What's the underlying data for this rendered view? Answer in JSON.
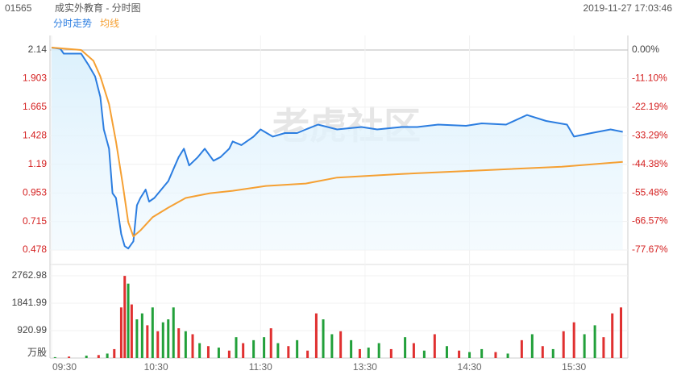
{
  "header": {
    "code": "01565",
    "title": "成实外教育 - 分时图",
    "datetime": "2019-11-27 17:03:46"
  },
  "watermark": "老虎社区",
  "chart_data": [
    {
      "type": "line",
      "xlim": [
        0,
        330
      ],
      "xticks": [
        {
          "value": 0,
          "label": "09:30"
        },
        {
          "value": 60,
          "label": "10:30"
        },
        {
          "value": 120,
          "label": "11:30"
        },
        {
          "value": 180,
          "label": "13:30"
        },
        {
          "value": 240,
          "label": "14:30"
        },
        {
          "value": 300,
          "label": "15:30"
        }
      ],
      "ylim": [
        0.478,
        2.14
      ],
      "yticks": [
        2.14,
        1.903,
        1.665,
        1.428,
        1.19,
        0.953,
        0.715,
        0.478
      ],
      "y2lim": [
        -77.67,
        0
      ],
      "y2ticks": [
        {
          "value": 0,
          "label": "0.00%"
        },
        {
          "value": -11.1,
          "label": "-11.10%"
        },
        {
          "value": -22.19,
          "label": "-22.19%"
        },
        {
          "value": -33.29,
          "label": "-33.29%"
        },
        {
          "value": -44.38,
          "label": "-44.38%"
        },
        {
          "value": -55.48,
          "label": "-55.48%"
        },
        {
          "value": -66.57,
          "label": "-66.57%"
        },
        {
          "value": -77.67,
          "label": "-77.67%"
        }
      ],
      "series": [
        {
          "name": "分时走势",
          "color": "#2b7de0",
          "x": [
            0,
            5,
            7,
            17,
            21,
            25,
            28,
            30,
            33,
            35,
            37,
            40,
            42,
            44,
            47,
            49,
            51,
            54,
            56,
            59,
            63,
            67,
            70,
            73,
            76,
            79,
            84,
            88,
            93,
            97,
            102,
            104,
            109,
            116,
            120,
            127,
            134,
            141,
            146,
            153,
            164,
            178,
            187,
            201,
            210,
            222,
            238,
            247,
            261,
            273,
            284,
            296,
            300,
            310,
            321,
            328
          ],
          "values": [
            2.16,
            2.15,
            2.11,
            2.11,
            2.02,
            1.92,
            1.75,
            1.48,
            1.32,
            0.95,
            0.91,
            0.61,
            0.51,
            0.49,
            0.55,
            0.85,
            0.91,
            0.98,
            0.88,
            0.91,
            0.98,
            1.05,
            1.15,
            1.25,
            1.32,
            1.18,
            1.25,
            1.32,
            1.22,
            1.25,
            1.32,
            1.38,
            1.35,
            1.42,
            1.48,
            1.42,
            1.45,
            1.45,
            1.48,
            1.52,
            1.48,
            1.5,
            1.48,
            1.5,
            1.5,
            1.52,
            1.51,
            1.53,
            1.52,
            1.6,
            1.55,
            1.52,
            1.42,
            1.45,
            1.48,
            1.46
          ]
        },
        {
          "name": "均线",
          "color": "#f5a033",
          "x": [
            0,
            17,
            24,
            28,
            33,
            37,
            41,
            44,
            47,
            51,
            58,
            67,
            77,
            91,
            104,
            123,
            146,
            164,
            201,
            247,
            293,
            328
          ],
          "values": [
            2.16,
            2.14,
            2.05,
            1.92,
            1.69,
            1.38,
            1.01,
            0.71,
            0.59,
            0.64,
            0.75,
            0.83,
            0.91,
            0.95,
            0.97,
            1.01,
            1.03,
            1.08,
            1.11,
            1.14,
            1.17,
            1.21
          ]
        }
      ]
    },
    {
      "type": "bar",
      "unit": "万股",
      "ylim": [
        0,
        2762.98
      ],
      "yticks": [
        920.99,
        1841.99,
        2762.98
      ],
      "x": [
        2,
        10,
        20,
        27,
        32,
        36,
        40,
        42,
        44,
        46,
        49,
        52,
        55,
        58,
        61,
        64,
        67,
        70,
        73,
        77,
        81,
        85,
        90,
        96,
        102,
        106,
        110,
        116,
        122,
        126,
        130,
        136,
        141,
        147,
        152,
        156,
        161,
        166,
        172,
        177,
        182,
        188,
        195,
        203,
        208,
        214,
        220,
        227,
        234,
        240,
        247,
        255,
        262,
        270,
        276,
        282,
        288,
        294,
        300,
        306,
        312,
        317,
        322,
        327
      ],
      "values": [
        30,
        50,
        80,
        100,
        150,
        300,
        1700,
        2760,
        2500,
        1800,
        1300,
        1500,
        1100,
        1700,
        900,
        1200,
        1300,
        1700,
        1000,
        900,
        800,
        500,
        400,
        350,
        250,
        700,
        500,
        600,
        700,
        1000,
        500,
        400,
        600,
        250,
        1500,
        1300,
        800,
        900,
        600,
        300,
        350,
        500,
        300,
        700,
        500,
        250,
        800,
        400,
        250,
        200,
        300,
        200,
        150,
        600,
        800,
        400,
        300,
        900,
        1200,
        800,
        1100,
        700,
        1500,
        1700
      ],
      "colors": [
        "#22a03a",
        "#e03030",
        "#22a03a",
        "#e03030",
        "#22a03a",
        "#e03030",
        "#e03030",
        "#e03030",
        "#22a03a",
        "#e03030",
        "#22a03a",
        "#22a03a",
        "#e03030",
        "#22a03a",
        "#e03030",
        "#22a03a",
        "#22a03a",
        "#22a03a",
        "#e03030",
        "#22a03a",
        "#e03030",
        "#22a03a",
        "#e03030",
        "#22a03a",
        "#e03030",
        "#22a03a",
        "#e03030",
        "#22a03a",
        "#22a03a",
        "#e03030",
        "#22a03a",
        "#e03030",
        "#22a03a",
        "#e03030",
        "#e03030",
        "#22a03a",
        "#22a03a",
        "#e03030",
        "#22a03a",
        "#e03030",
        "#22a03a",
        "#22a03a",
        "#e03030",
        "#22a03a",
        "#e03030",
        "#22a03a",
        "#e03030",
        "#22a03a",
        "#e03030",
        "#22a03a",
        "#22a03a",
        "#e03030",
        "#22a03a",
        "#e03030",
        "#22a03a",
        "#e03030",
        "#22a03a",
        "#e03030",
        "#e03030",
        "#22a03a",
        "#22a03a",
        "#e03030",
        "#e03030",
        "#e03030"
      ]
    }
  ]
}
